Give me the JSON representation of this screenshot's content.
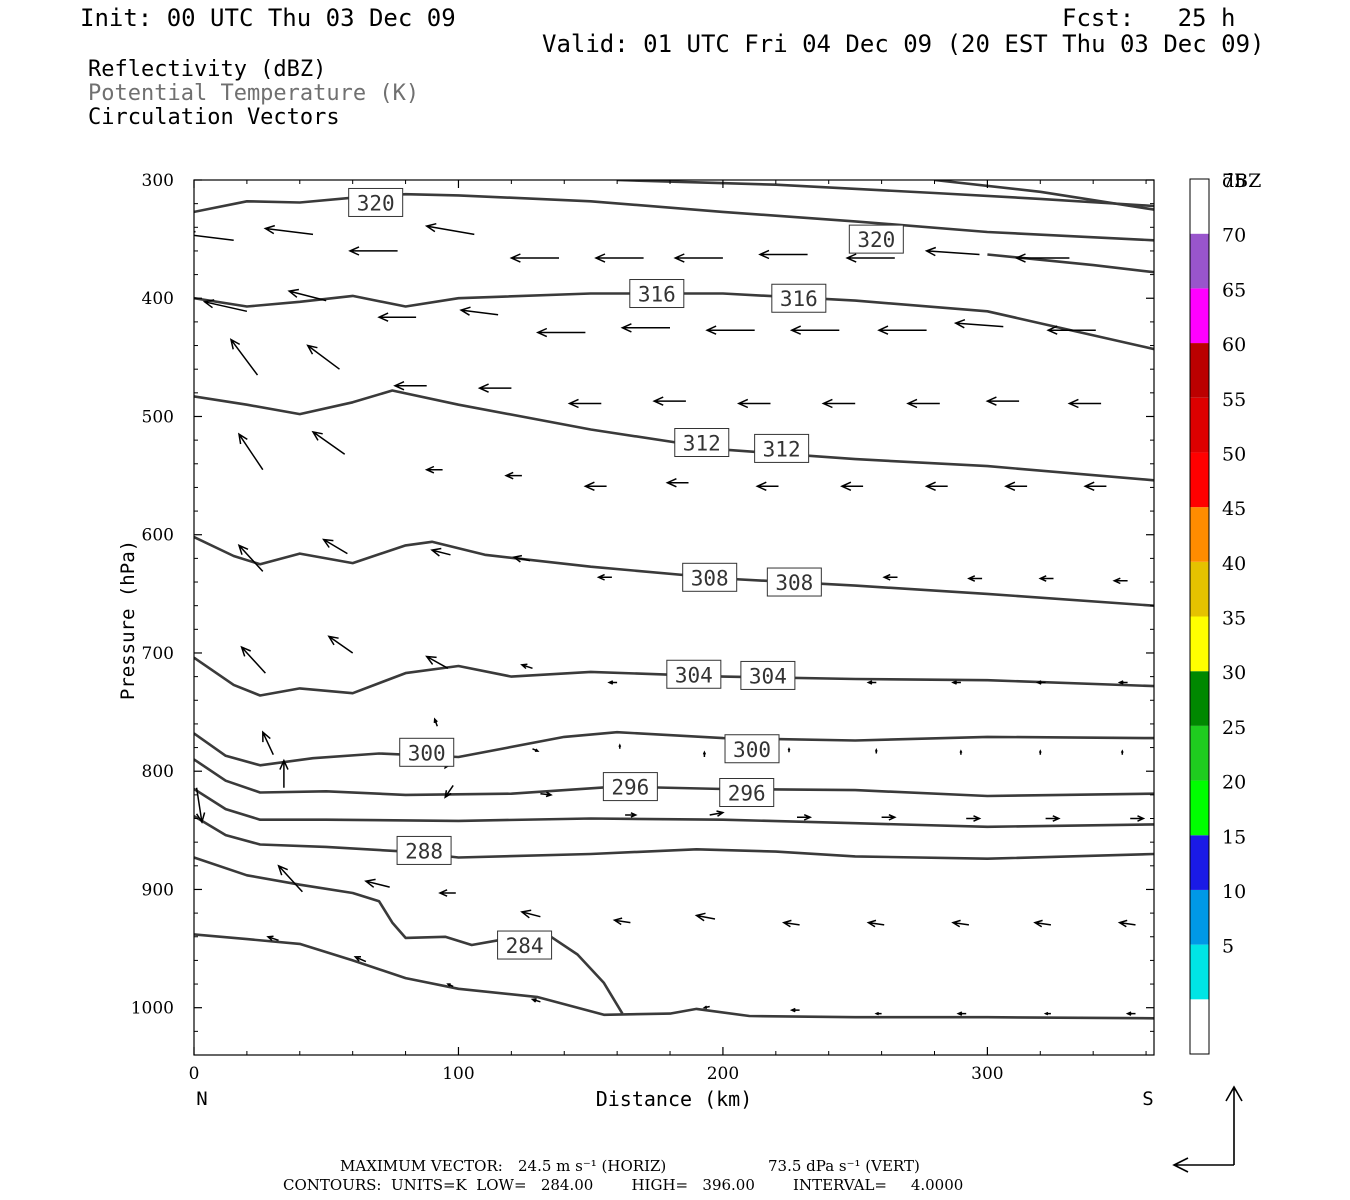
{
  "header": {
    "init": "Init: 00 UTC Thu 03 Dec 09",
    "fcst": "Fcst:   25 h",
    "valid": "Valid: 01 UTC Fri 04 Dec 09 (20 EST Thu 03 Dec 09)"
  },
  "fields": {
    "reflectivity": "Reflectivity (dBZ)",
    "theta": "Potential Temperature (K)",
    "vectors": "Circulation Vectors"
  },
  "footer": {
    "maxvec_label": "MAXIMUM VECTOR:",
    "maxvec_horiz": "24.5 m s⁻¹ (HORIZ)",
    "maxvec_vert": "73.5 dPa s⁻¹ (VERT)",
    "contours": "CONTOURS:  UNITS=K  LOW=   284.00        HIGH=   396.00        INTERVAL=     4.0000"
  },
  "colors": {
    "contour": "#3a3a3a",
    "frame": "#000000"
  },
  "chart_data": {
    "type": "line",
    "xlabel": "Distance (km)",
    "ylabel": "Pressure (hPa)",
    "xlim": [
      0,
      363
    ],
    "ylim": [
      1040,
      300
    ],
    "xticks": [
      0,
      100,
      200,
      300
    ],
    "yticks": [
      300,
      400,
      500,
      600,
      700,
      800,
      900,
      1000
    ],
    "x_end_labels": {
      "left": "N",
      "right": "S"
    },
    "colorbar": {
      "unit": "dBZ",
      "levels": [
        {
          "label": "",
          "color": "#ffffff"
        },
        {
          "label": "5",
          "color": "#00e5e5"
        },
        {
          "label": "10",
          "color": "#0099e6"
        },
        {
          "label": "15",
          "color": "#1a1ae6"
        },
        {
          "label": "20",
          "color": "#00ff00"
        },
        {
          "label": "25",
          "color": "#1fcc1f"
        },
        {
          "label": "30",
          "color": "#008800"
        },
        {
          "label": "35",
          "color": "#ffff00"
        },
        {
          "label": "40",
          "color": "#e5c200"
        },
        {
          "label": "45",
          "color": "#ff8c00"
        },
        {
          "label": "50",
          "color": "#ff0000"
        },
        {
          "label": "55",
          "color": "#dd0000"
        },
        {
          "label": "60",
          "color": "#bb0000"
        },
        {
          "label": "65",
          "color": "#ff00ff"
        },
        {
          "label": "70",
          "color": "#9955cc"
        },
        {
          "label": "75",
          "color": "#ffffff"
        }
      ]
    },
    "series": [
      {
        "name": "320",
        "values": [
          [
            0,
            327
          ],
          [
            20,
            318
          ],
          [
            40,
            319
          ],
          [
            60,
            315
          ],
          [
            80,
            312
          ],
          [
            100,
            313
          ],
          [
            150,
            318
          ],
          [
            200,
            327
          ],
          [
            250,
            335
          ],
          [
            300,
            344
          ],
          [
            363,
            351
          ]
        ]
      },
      {
        "name": "",
        "values": [
          [
            160,
            300
          ],
          [
            220,
            304
          ],
          [
            280,
            311
          ],
          [
            320,
            316
          ],
          [
            363,
            322
          ]
        ]
      },
      {
        "name": "",
        "values": [
          [
            280,
            300
          ],
          [
            320,
            310
          ],
          [
            363,
            325
          ]
        ]
      },
      {
        "name": "316",
        "values": [
          [
            0,
            400
          ],
          [
            20,
            407
          ],
          [
            40,
            403
          ],
          [
            60,
            398
          ],
          [
            80,
            407
          ],
          [
            100,
            400
          ],
          [
            150,
            396
          ],
          [
            200,
            396
          ],
          [
            250,
            402
          ],
          [
            300,
            411
          ],
          [
            363,
            443
          ]
        ]
      },
      {
        "name": "",
        "values": [
          [
            300,
            363
          ],
          [
            340,
            372
          ],
          [
            363,
            378
          ]
        ]
      },
      {
        "name": "312",
        "values": [
          [
            0,
            483
          ],
          [
            20,
            490
          ],
          [
            40,
            498
          ],
          [
            60,
            488
          ],
          [
            75,
            478
          ],
          [
            100,
            490
          ],
          [
            150,
            511
          ],
          [
            200,
            528
          ],
          [
            250,
            536
          ],
          [
            300,
            542
          ],
          [
            363,
            554
          ]
        ]
      },
      {
        "name": "308",
        "values": [
          [
            0,
            602
          ],
          [
            15,
            618
          ],
          [
            25,
            625
          ],
          [
            40,
            616
          ],
          [
            60,
            624
          ],
          [
            80,
            609
          ],
          [
            90,
            606
          ],
          [
            110,
            617
          ],
          [
            150,
            627
          ],
          [
            200,
            637
          ],
          [
            250,
            643
          ],
          [
            300,
            650
          ],
          [
            363,
            660
          ]
        ]
      },
      {
        "name": "304",
        "values": [
          [
            0,
            704
          ],
          [
            15,
            727
          ],
          [
            25,
            736
          ],
          [
            40,
            730
          ],
          [
            60,
            734
          ],
          [
            80,
            717
          ],
          [
            100,
            711
          ],
          [
            120,
            720
          ],
          [
            150,
            716
          ],
          [
            200,
            720
          ],
          [
            250,
            722
          ],
          [
            300,
            723
          ],
          [
            363,
            728
          ]
        ]
      },
      {
        "name": "300",
        "values": [
          [
            0,
            768
          ],
          [
            12,
            787
          ],
          [
            25,
            795
          ],
          [
            45,
            789
          ],
          [
            70,
            785
          ],
          [
            100,
            788
          ],
          [
            140,
            771
          ],
          [
            160,
            767
          ],
          [
            200,
            772
          ],
          [
            250,
            774
          ],
          [
            300,
            771
          ],
          [
            363,
            772
          ]
        ]
      },
      {
        "name": "296",
        "values": [
          [
            0,
            790
          ],
          [
            12,
            808
          ],
          [
            25,
            818
          ],
          [
            50,
            817
          ],
          [
            80,
            820
          ],
          [
            120,
            819
          ],
          [
            160,
            813
          ],
          [
            200,
            815
          ],
          [
            250,
            816
          ],
          [
            300,
            821
          ],
          [
            363,
            819
          ]
        ]
      },
      {
        "name": "",
        "values": [
          [
            0,
            815
          ],
          [
            12,
            832
          ],
          [
            25,
            841
          ],
          [
            50,
            841
          ],
          [
            100,
            842
          ],
          [
            150,
            840
          ],
          [
            200,
            841
          ],
          [
            250,
            844
          ],
          [
            300,
            847
          ],
          [
            363,
            845
          ]
        ]
      },
      {
        "name": "288",
        "values": [
          [
            0,
            838
          ],
          [
            12,
            854
          ],
          [
            25,
            862
          ],
          [
            50,
            864
          ],
          [
            80,
            868
          ],
          [
            100,
            873
          ],
          [
            150,
            870
          ],
          [
            190,
            866
          ],
          [
            220,
            868
          ],
          [
            250,
            872
          ],
          [
            300,
            874
          ],
          [
            363,
            870
          ]
        ]
      },
      {
        "name": "",
        "values": [
          [
            0,
            873
          ],
          [
            20,
            888
          ],
          [
            40,
            896
          ],
          [
            60,
            903
          ],
          [
            70,
            910
          ],
          [
            75,
            928
          ],
          [
            80,
            941
          ],
          [
            95,
            940
          ],
          [
            105,
            947
          ],
          [
            115,
            943
          ],
          [
            135,
            940
          ],
          [
            145,
            955
          ],
          [
            155,
            979
          ],
          [
            162,
            1005
          ]
        ]
      },
      {
        "name": "284",
        "values": [
          [
            0,
            938
          ],
          [
            20,
            942
          ],
          [
            40,
            946
          ],
          [
            60,
            960
          ],
          [
            80,
            975
          ],
          [
            100,
            984
          ],
          [
            130,
            991
          ],
          [
            155,
            1006
          ],
          [
            180,
            1005
          ],
          [
            190,
            1001
          ],
          [
            210,
            1007
          ],
          [
            250,
            1008
          ],
          [
            300,
            1008
          ],
          [
            363,
            1009
          ]
        ]
      }
    ],
    "vectors": [
      [
        15,
        351,
        -18,
        -5
      ],
      [
        45,
        346,
        -18,
        -5
      ],
      [
        77,
        360,
        -18,
        0
      ],
      [
        106,
        346,
        -18,
        -7
      ],
      [
        138,
        366,
        -18,
        0
      ],
      [
        170,
        366,
        -18,
        0
      ],
      [
        200,
        366,
        -18,
        0
      ],
      [
        232,
        363,
        -18,
        0
      ],
      [
        265,
        366,
        -18,
        0
      ],
      [
        297,
        363,
        -20,
        -3
      ],
      [
        331,
        366,
        -20,
        0
      ],
      [
        20,
        411,
        -16,
        -8
      ],
      [
        50,
        402,
        -14,
        -8
      ],
      [
        84,
        416,
        -14,
        0
      ],
      [
        115,
        414,
        -14,
        -4
      ],
      [
        148,
        429,
        -18,
        0
      ],
      [
        180,
        425,
        -18,
        0
      ],
      [
        212,
        427,
        -18,
        0
      ],
      [
        244,
        427,
        -18,
        0
      ],
      [
        277,
        427,
        -18,
        0
      ],
      [
        306,
        424,
        -18,
        -3
      ],
      [
        341,
        427,
        -18,
        0
      ],
      [
        24,
        465,
        -10,
        -30
      ],
      [
        55,
        460,
        -12,
        -20
      ],
      [
        88,
        474,
        -12,
        0
      ],
      [
        120,
        476,
        -12,
        0
      ],
      [
        154,
        489,
        -12,
        0
      ],
      [
        186,
        487,
        -12,
        0
      ],
      [
        218,
        489,
        -12,
        0
      ],
      [
        250,
        489,
        -12,
        0
      ],
      [
        282,
        489,
        -12,
        0
      ],
      [
        312,
        487,
        -12,
        0
      ],
      [
        343,
        489,
        -12,
        0
      ],
      [
        26,
        545,
        -9,
        -30
      ],
      [
        57,
        532,
        -12,
        -19
      ],
      [
        94,
        545,
        -6,
        0
      ],
      [
        124,
        550,
        -6,
        0
      ],
      [
        156,
        559,
        -8,
        0
      ],
      [
        187,
        556,
        -8,
        0
      ],
      [
        221,
        559,
        -8,
        0
      ],
      [
        253,
        559,
        -8,
        0
      ],
      [
        285,
        559,
        -8,
        0
      ],
      [
        315,
        559,
        -8,
        0
      ],
      [
        345,
        559,
        -8,
        0
      ],
      [
        26,
        631,
        -9,
        -22
      ],
      [
        58,
        616,
        -9,
        -12
      ],
      [
        97,
        617,
        -7,
        -4
      ],
      [
        127,
        622,
        -6,
        -3
      ],
      [
        158,
        636,
        -5,
        0
      ],
      [
        200,
        637,
        -5,
        0
      ],
      [
        235,
        637,
        -5,
        0
      ],
      [
        266,
        636,
        -5,
        0
      ],
      [
        298,
        637,
        -5,
        0
      ],
      [
        325,
        637,
        -5,
        0
      ],
      [
        353,
        639,
        -5,
        0
      ],
      [
        27,
        717,
        -9,
        -22
      ],
      [
        60,
        700,
        -9,
        -14
      ],
      [
        96,
        713,
        -8,
        -10
      ],
      [
        128,
        713,
        -4,
        -3
      ],
      [
        160,
        725,
        -3,
        0
      ],
      [
        225,
        725,
        -3,
        0
      ],
      [
        258,
        725,
        -3,
        0
      ],
      [
        290,
        725,
        -3,
        0
      ],
      [
        322,
        725,
        -3,
        0
      ],
      [
        353,
        725,
        -3,
        0
      ],
      [
        30,
        786,
        -4,
        -19
      ],
      [
        92,
        762,
        -1,
        -6
      ],
      [
        98,
        787,
        -3,
        10
      ],
      [
        128,
        781,
        2,
        2
      ],
      [
        161,
        781,
        0,
        -3
      ],
      [
        193,
        788,
        0,
        -4
      ],
      [
        225,
        784,
        0,
        -3
      ],
      [
        258,
        785,
        0,
        -3
      ],
      [
        290,
        786,
        0,
        -3
      ],
      [
        320,
        786,
        0,
        -3
      ],
      [
        351,
        786,
        0,
        -3
      ],
      [
        1,
        814,
        2,
        29
      ],
      [
        34,
        814,
        0,
        -23
      ],
      [
        98,
        812,
        -3,
        10
      ],
      [
        131,
        819,
        4,
        1
      ],
      [
        163,
        837,
        4,
        0
      ],
      [
        195,
        837,
        5,
        -2
      ],
      [
        228,
        839,
        5,
        0
      ],
      [
        260,
        839,
        5,
        0
      ],
      [
        292,
        840,
        5,
        0
      ],
      [
        322,
        840,
        5,
        0
      ],
      [
        354,
        840,
        5,
        0
      ],
      [
        41,
        902,
        -9,
        -22
      ],
      [
        74,
        898,
        -9,
        -5
      ],
      [
        99,
        903,
        -6,
        0
      ],
      [
        131,
        923,
        -7,
        -4
      ],
      [
        165,
        928,
        -6,
        -2
      ],
      [
        197,
        925,
        -7,
        -3
      ],
      [
        229,
        930,
        -6,
        -2
      ],
      [
        261,
        930,
        -6,
        -2
      ],
      [
        293,
        930,
        -6,
        -2
      ],
      [
        324,
        930,
        -6,
        -2
      ],
      [
        356,
        930,
        -6,
        -2
      ],
      [
        0,
        924,
        -2,
        -10
      ],
      [
        32,
        943,
        -4,
        -3
      ],
      [
        65,
        961,
        -4,
        -4
      ],
      [
        98,
        982,
        -2,
        -2
      ],
      [
        131,
        995,
        -3,
        -2
      ],
      [
        195,
        999,
        -2,
        1
      ],
      [
        229,
        1002,
        -3,
        0
      ],
      [
        260,
        1005,
        -2,
        0
      ],
      [
        292,
        1005,
        -3,
        0
      ],
      [
        324,
        1005,
        -2,
        0
      ],
      [
        356,
        1005,
        -3,
        0
      ]
    ],
    "contour_labels": [
      {
        "text": "320",
        "x": 68.7,
        "y": 319
      },
      {
        "text": "320",
        "x": 258,
        "y": 350
      },
      {
        "text": "316",
        "x": 175,
        "y": 396
      },
      {
        "text": "316",
        "x": 228.7,
        "y": 400
      },
      {
        "text": "312",
        "x": 192,
        "y": 522
      },
      {
        "text": "312",
        "x": 222.2,
        "y": 527
      },
      {
        "text": "308",
        "x": 195,
        "y": 636
      },
      {
        "text": "308",
        "x": 227,
        "y": 640
      },
      {
        "text": "304",
        "x": 189,
        "y": 718
      },
      {
        "text": "304",
        "x": 217,
        "y": 719
      },
      {
        "text": "300",
        "x": 88,
        "y": 784
      },
      {
        "text": "300",
        "x": 211,
        "y": 781
      },
      {
        "text": "296",
        "x": 165,
        "y": 813
      },
      {
        "text": "296",
        "x": 209,
        "y": 818
      },
      {
        "text": "288",
        "x": 87,
        "y": 867
      },
      {
        "text": "284",
        "x": 125,
        "y": 947
      }
    ]
  }
}
